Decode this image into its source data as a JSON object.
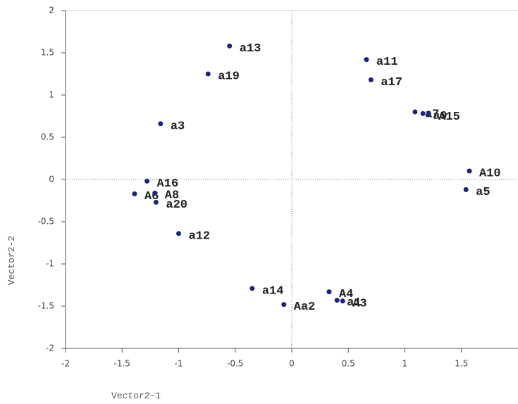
{
  "chart_data": {
    "type": "scatter",
    "x_label": "Vector2-1",
    "y_label": "Vector2-2",
    "xlim": [
      -2,
      2
    ],
    "ylim": [
      -2,
      2
    ],
    "xticks": [
      -2,
      -1.5,
      -1,
      -0.5,
      0,
      0.5,
      1,
      1.5
    ],
    "yticks": [
      -2,
      -1.5,
      -1,
      -0.5,
      0,
      0.5,
      1,
      1.5,
      2
    ],
    "color": "#1a237e",
    "labels": [
      "a13",
      "a19",
      "a11",
      "a17",
      "a3",
      "a7",
      "a9",
      "A15",
      "A10",
      "a5",
      "A16",
      "A6",
      "A8",
      "a20",
      "a12",
      "a14",
      "Aa2",
      "A4",
      "a1",
      "A3"
    ],
    "x": [
      -0.55,
      -0.74,
      0.66,
      0.7,
      -1.16,
      1.09,
      1.16,
      1.21,
      1.57,
      1.54,
      -1.28,
      -1.39,
      -1.21,
      -1.2,
      -1.0,
      -0.35,
      -0.07,
      0.33,
      0.4,
      0.45
    ],
    "values": [
      1.58,
      1.25,
      1.42,
      1.18,
      0.66,
      0.8,
      0.78,
      0.77,
      0.1,
      -0.12,
      -0.02,
      -0.17,
      -0.16,
      -0.27,
      -0.64,
      -1.29,
      -1.48,
      -1.33,
      -1.43,
      -1.44
    ]
  }
}
